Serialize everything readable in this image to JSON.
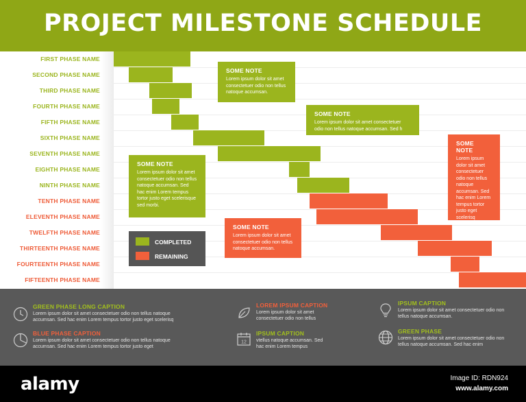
{
  "title": "PROJECT MILESTONE SCHEDULE",
  "colors": {
    "completed": "#9bb51e",
    "remaining": "#f2603b",
    "header": "#8fa716",
    "footer": "#595959"
  },
  "phases": [
    {
      "label": "FIRST PHASE NAME",
      "status": "completed"
    },
    {
      "label": "SECOND PHASE NAME",
      "status": "completed"
    },
    {
      "label": "THIRD PHASE NAME",
      "status": "completed"
    },
    {
      "label": "FOURTH PHASE NAME",
      "status": "completed"
    },
    {
      "label": "FIFTH PHASE NAME",
      "status": "completed"
    },
    {
      "label": "SIXTH PHASE NAME",
      "status": "completed"
    },
    {
      "label": "SEVENTH PHASE NAME",
      "status": "completed"
    },
    {
      "label": "EIGHTH PHASE NAME",
      "status": "completed"
    },
    {
      "label": "NINTH PHASE NAME",
      "status": "completed"
    },
    {
      "label": "TENTH PHASE NAME",
      "status": "remaining"
    },
    {
      "label": "ELEVENTH PHASE NAME",
      "status": "remaining"
    },
    {
      "label": "TWELFTH PHASE NAME",
      "status": "remaining"
    },
    {
      "label": "THIRTEENTH PHASE NAME",
      "status": "remaining"
    },
    {
      "label": "FOURTEENTH PHASE NAME",
      "status": "remaining"
    },
    {
      "label": "FIFTEENTH PHASE NAME",
      "status": "remaining"
    }
  ],
  "notes": [
    {
      "title": "SOME NOTE",
      "text": "Lorem ipsum dolor sit amet consectetuer odio non tellus natoque accumsan.",
      "color": "green"
    },
    {
      "title": "SOME NOTE",
      "text": "Lorem ipsum dolor sit amet consectetuer odio non tellus natoque accumsan. Sed h",
      "color": "green"
    },
    {
      "title": "SOME NOTE",
      "text": "Lorem ipsum dolor sit amet consectetuer odio non tellus natoque accumsan. Sed hac enim Lorem tempus tortor justo eget scelerisq",
      "color": "orange"
    },
    {
      "title": "SOME NOTE",
      "text": "Lorem ipsum dolor sit amet consectetuer odio non tellus natoque accumsan. Sed hac enim Lorem tempus tortor justo eget scelerisque sed morbi.",
      "color": "green"
    },
    {
      "title": "SOME NOTE",
      "text": "Lorem ipsum dolor sit amet consectetuer odio non tellus natoque accumsan.",
      "color": "orange"
    }
  ],
  "legend": {
    "completed": "COMPLETED",
    "remaining": "REMAINING"
  },
  "captions": [
    {
      "title": "GREEN PHASE LONG CAPTION",
      "text": "Lorem ipsum dolor sit amet consectetuer odio non tellus natoque accumsan. Sed hac enim Lorem tempus tortor justo eget scelerisq",
      "color": "green",
      "icon": "clock-icon"
    },
    {
      "title": "LOREM IPSUM CAPTION",
      "text": "Lorem ipsum dolor sit amet consectetuer odio non tellus",
      "color": "orange",
      "icon": "leaf-icon"
    },
    {
      "title": "IPSUM CAPTION",
      "text": "Lorem ipsum dolor sit amet consectetuer odio non tellus natoque accumsan.",
      "color": "green",
      "icon": "lightbulb-icon"
    },
    {
      "title": "BLUE PHASE CAPTION",
      "text": "Lorem ipsum dolor sit amet consectetuer odio non tellus natoque accumsan. Sed hac enim Lorem tempus tortor justo eget",
      "color": "orange",
      "icon": "pie-chart-icon"
    },
    {
      "title": "IPSUM CAPTION",
      "text": "vtellus natoque accumsan. Sed hac enim Lorem tempus",
      "color": "green",
      "icon": "calendar-icon"
    },
    {
      "title": "GREEN PHASE",
      "text": "Lorem ipsum dolor sit amet consectetuer odio non tellus natoque accumsan. Sed hac enim",
      "color": "green",
      "icon": "globe-icon"
    }
  ],
  "calendar_day": "12",
  "stock": {
    "logo": "alamy",
    "image_id": "Image ID: RDN924",
    "url": "www.alamy.com"
  }
}
